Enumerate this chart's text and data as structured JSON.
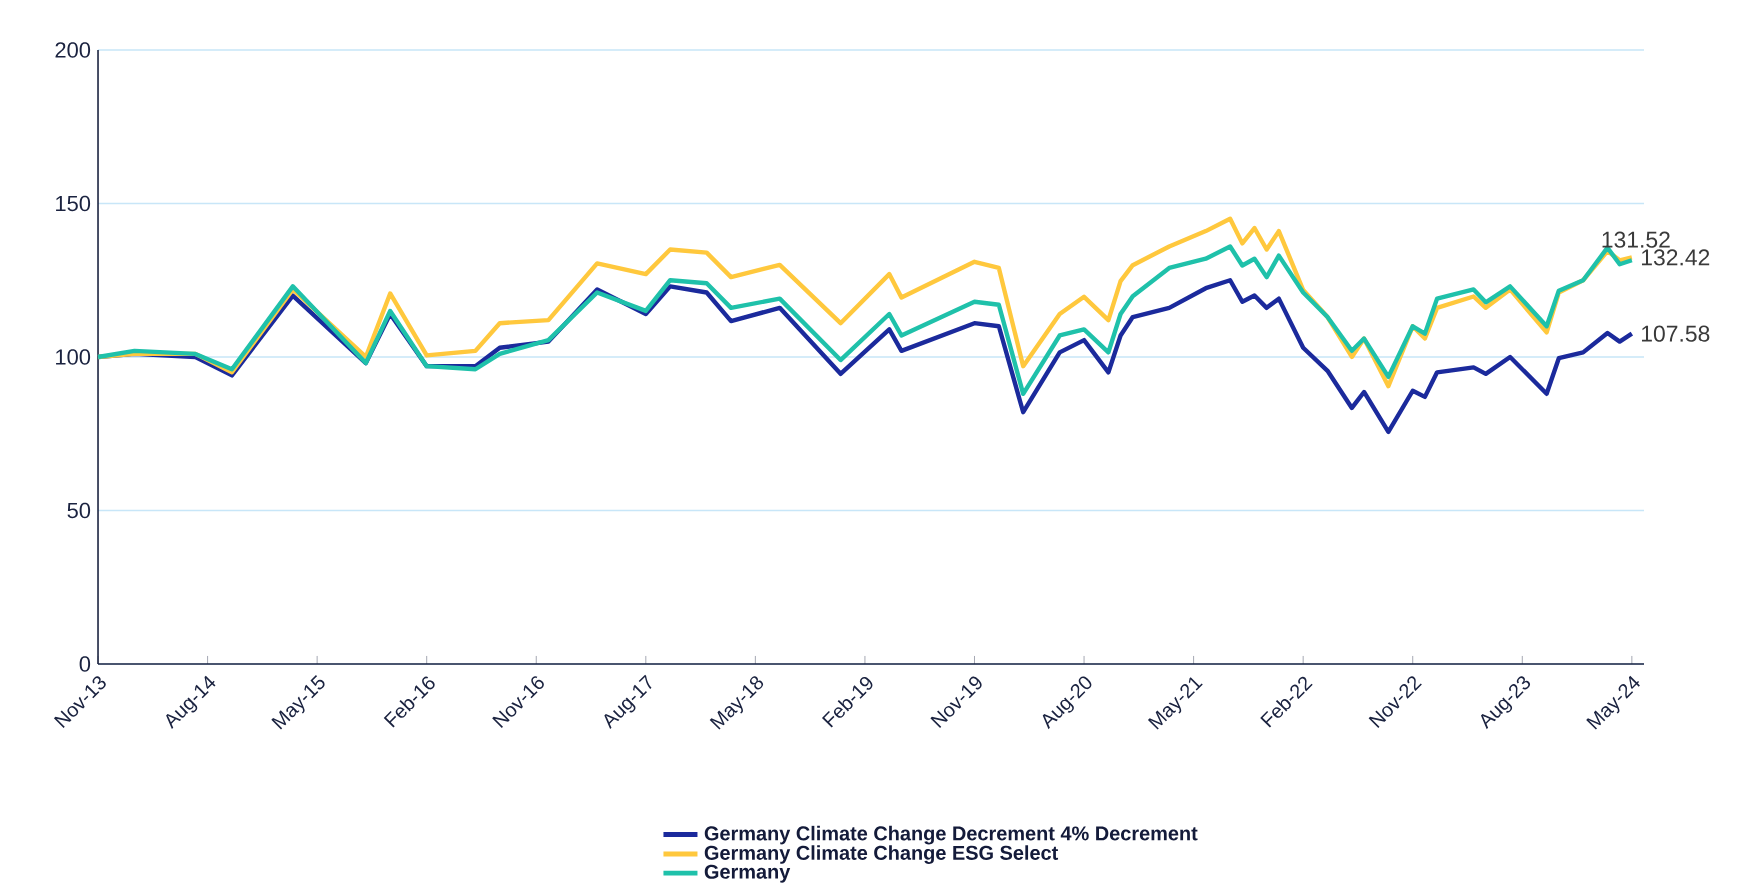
{
  "chart_data": {
    "type": "line",
    "x": [
      "2013-11",
      "2014-02",
      "2014-07",
      "2014-10",
      "2015-03",
      "2015-09",
      "2015-11",
      "2016-02",
      "2016-06",
      "2016-08",
      "2016-12",
      "2017-04",
      "2017-08",
      "2017-10",
      "2018-01",
      "2018-03",
      "2018-07",
      "2018-12",
      "2019-04",
      "2019-05",
      "2019-11",
      "2020-01",
      "2020-03",
      "2020-06",
      "2020-08",
      "2020-10",
      "2020-11",
      "2020-12",
      "2021-03",
      "2021-06",
      "2021-08",
      "2021-09",
      "2021-10",
      "2021-11",
      "2021-12",
      "2022-02",
      "2022-04",
      "2022-06",
      "2022-07",
      "2022-09",
      "2022-11",
      "2022-12",
      "2023-01",
      "2023-04",
      "2023-05",
      "2023-07",
      "2023-10",
      "2023-11",
      "2024-01",
      "2024-03",
      "2024-04",
      "2024-05"
    ],
    "series": [
      {
        "name": "Germany Climate Change Decrement 4% Decrement",
        "color": "#1b2a9c",
        "values": [
          100,
          101,
          100,
          94,
          120,
          98,
          114,
          97,
          97,
          103,
          105,
          122,
          114,
          123,
          121,
          111.7,
          116,
          94.5,
          109,
          102,
          111,
          110,
          82,
          101.5,
          105.5,
          95,
          107,
          113,
          116,
          122.4,
          125,
          118,
          120,
          116,
          119,
          103,
          95.5,
          83.4,
          88.6,
          75.6,
          89,
          87,
          95,
          96.6,
          94.5,
          100,
          88,
          99.6,
          101.5,
          107.8,
          105,
          107.58
        ],
        "value_labels": [
          null,
          null,
          null,
          null,
          null,
          null,
          null,
          null,
          null,
          null,
          null,
          null,
          null,
          null,
          null,
          null,
          null,
          null,
          null,
          null,
          null,
          null,
          null,
          null,
          null,
          null,
          null,
          null,
          null,
          null,
          null,
          null,
          null,
          null,
          null,
          null,
          null,
          null,
          null,
          null,
          null,
          null,
          null,
          null,
          null,
          null,
          null,
          null,
          null,
          null,
          null,
          "107.58"
        ]
      },
      {
        "name": "Germany Climate Change ESG Select",
        "color": "#ffc83d",
        "values": [
          100,
          101,
          101,
          95,
          122,
          100,
          120.7,
          100.5,
          102,
          111,
          112,
          130.5,
          127,
          135,
          134,
          126,
          130,
          111,
          127,
          119.4,
          131,
          129,
          97,
          114,
          119.6,
          112,
          124.7,
          129.9,
          136,
          141,
          145,
          137,
          142,
          135,
          141,
          121.8,
          113,
          100,
          106,
          90.5,
          110,
          106,
          116,
          119.7,
          116,
          122,
          108,
          121,
          125,
          134.5,
          131.5,
          132.42
        ],
        "value_labels": [
          null,
          null,
          null,
          null,
          null,
          null,
          null,
          null,
          null,
          null,
          null,
          null,
          null,
          null,
          null,
          null,
          null,
          null,
          null,
          null,
          null,
          null,
          null,
          null,
          null,
          null,
          null,
          null,
          null,
          null,
          null,
          null,
          null,
          null,
          null,
          null,
          null,
          null,
          null,
          null,
          null,
          null,
          null,
          null,
          null,
          null,
          null,
          null,
          null,
          null,
          null,
          "132.42"
        ]
      },
      {
        "name": "Germany",
        "color": "#1fc1aa",
        "values": [
          100,
          102,
          101,
          96,
          123,
          98,
          115,
          97,
          96,
          101,
          105.5,
          121,
          115,
          125,
          124,
          116,
          119,
          99,
          114,
          107,
          118,
          117,
          88,
          107,
          109,
          101.5,
          114,
          119.8,
          129,
          132,
          136,
          129.8,
          132,
          126,
          133,
          121,
          113,
          102,
          106,
          93.5,
          110,
          107.6,
          119,
          122,
          117.8,
          123,
          110,
          121.6,
          125,
          135.6,
          130.2,
          131.52
        ],
        "value_labels": [
          null,
          null,
          null,
          null,
          null,
          null,
          null,
          null,
          null,
          null,
          null,
          null,
          null,
          null,
          null,
          null,
          null,
          null,
          null,
          null,
          null,
          null,
          null,
          null,
          null,
          null,
          null,
          null,
          null,
          null,
          null,
          null,
          null,
          null,
          null,
          null,
          null,
          null,
          null,
          null,
          null,
          null,
          null,
          null,
          null,
          null,
          null,
          null,
          null,
          null,
          null,
          "131.52"
        ]
      }
    ],
    "xlim": [
      "2013-11",
      "2024-06"
    ],
    "xticks": [
      {
        "value": "2013-11",
        "label": "Nov-13"
      },
      {
        "value": "2014-08",
        "label": "Aug-14"
      },
      {
        "value": "2015-05",
        "label": "May-15"
      },
      {
        "value": "2016-02",
        "label": "Feb-16"
      },
      {
        "value": "2016-11",
        "label": "Nov-16"
      },
      {
        "value": "2017-08",
        "label": "Aug-17"
      },
      {
        "value": "2018-05",
        "label": "May-18"
      },
      {
        "value": "2019-02",
        "label": "Feb-19"
      },
      {
        "value": "2019-11",
        "label": "Nov-19"
      },
      {
        "value": "2020-08",
        "label": "Aug-20"
      },
      {
        "value": "2021-05",
        "label": "May-21"
      },
      {
        "value": "2022-02",
        "label": "Feb-22"
      },
      {
        "value": "2022-11",
        "label": "Nov-22"
      },
      {
        "value": "2023-08",
        "label": "Aug-23"
      },
      {
        "value": "2024-05",
        "label": "May-24"
      }
    ],
    "ylim": [
      0,
      200
    ],
    "yticks": [
      0,
      50,
      100,
      150,
      200
    ],
    "grid": "y",
    "legend": "bottom",
    "marker": "none",
    "line_style": "solid"
  }
}
